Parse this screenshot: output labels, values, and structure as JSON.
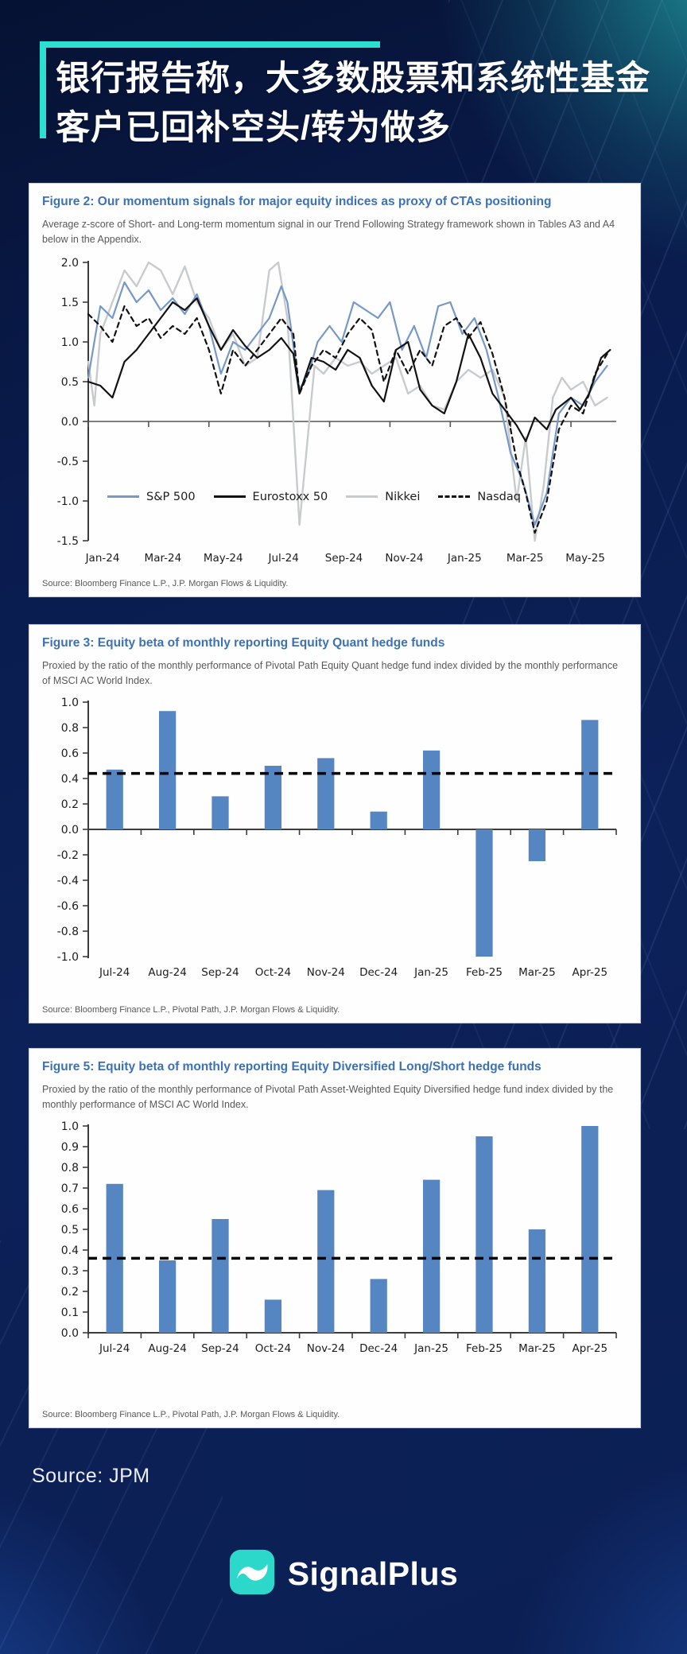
{
  "page": {
    "background": "#0b1f53",
    "accent_teal": "#2be0d0",
    "panel_title_blue": "#3c72b5",
    "bar_blue": "#5586c1"
  },
  "header": {
    "title_line1": "银行报告称，大多数股票和系统性基金",
    "title_line2": "客户已回补空头/转为做多"
  },
  "figures": [
    {
      "title": "Figure 2: Our momentum signals for major equity indices as proxy of CTAs positioning",
      "subtitle": "Average z-score of Short- and Long-term momentum signal in our Trend Following Strategy framework shown in Tables A3 and A4 below in the Appendix.",
      "source": "Source: Bloomberg Finance L.P., J.P. Morgan Flows & Liquidity."
    },
    {
      "title": "Figure 3: Equity beta of monthly reporting Equity Quant hedge funds",
      "subtitle": "Proxied by the ratio of the monthly performance of Pivotal Path Equity Quant hedge fund index divided by the monthly performance of MSCI AC World Index.",
      "source": "Source: Bloomberg Finance L.P., Pivotal Path, J.P. Morgan Flows & Liquidity."
    },
    {
      "title": "Figure 5: Equity beta of monthly reporting Equity Diversified Long/Short hedge funds",
      "subtitle": "Proxied by the ratio of the monthly performance of Pivotal Path Asset-Weighted Equity Diversified hedge fund index divided by the monthly performance of MSCI AC World Index.",
      "source": "Source: Bloomberg Finance L.P., Pivotal Path, J.P. Morgan Flows & Liquidity."
    }
  ],
  "chart_data": [
    {
      "type": "line",
      "title": "Figure 2: Our momentum signals for major equity indices as proxy of CTAs positioning",
      "ylabel": "Average z-score",
      "ylim": [
        -1.5,
        2.0
      ],
      "ytick_step": 0.5,
      "x_range": [
        0,
        17.5
      ],
      "x_tick_pos": [
        0,
        2,
        4,
        6,
        8,
        10,
        12,
        14,
        16
      ],
      "x_tick_labels": [
        "Jan-24",
        "Mar-24",
        "May-24",
        "Jul-24",
        "Sep-24",
        "Nov-24",
        "Jan-25",
        "Mar-25",
        "May-25"
      ],
      "grid": false,
      "legend_position": "bottom-inside",
      "draw_order": [
        2,
        0,
        3,
        1
      ],
      "series": [
        {
          "name": "S&P 500",
          "color": "#7598c8",
          "dash": false,
          "width": 2.2,
          "points": [
            [
              0,
              0.55
            ],
            [
              0.4,
              1.45
            ],
            [
              0.8,
              1.3
            ],
            [
              1.2,
              1.75
            ],
            [
              1.6,
              1.5
            ],
            [
              2,
              1.65
            ],
            [
              2.4,
              1.4
            ],
            [
              2.8,
              1.55
            ],
            [
              3.2,
              1.35
            ],
            [
              3.6,
              1.6
            ],
            [
              4,
              1.2
            ],
            [
              4.4,
              0.6
            ],
            [
              4.8,
              1.0
            ],
            [
              5.2,
              0.9
            ],
            [
              5.6,
              1.1
            ],
            [
              6,
              1.3
            ],
            [
              6.4,
              1.7
            ],
            [
              6.6,
              1.5
            ],
            [
              7,
              0.4
            ],
            [
              7.3,
              0.6
            ],
            [
              7.6,
              1.0
            ],
            [
              8,
              1.2
            ],
            [
              8.4,
              1.0
            ],
            [
              8.8,
              1.5
            ],
            [
              9.2,
              1.4
            ],
            [
              9.6,
              1.3
            ],
            [
              10,
              1.5
            ],
            [
              10.4,
              0.9
            ],
            [
              10.8,
              1.2
            ],
            [
              11.2,
              0.8
            ],
            [
              11.6,
              1.45
            ],
            [
              12,
              1.5
            ],
            [
              12.4,
              1.1
            ],
            [
              12.8,
              1.3
            ],
            [
              13.2,
              0.9
            ],
            [
              13.6,
              0.3
            ],
            [
              14,
              -0.4
            ],
            [
              14.4,
              -0.75
            ],
            [
              14.8,
              -1.3
            ],
            [
              15.2,
              -0.9
            ],
            [
              15.6,
              0.1
            ],
            [
              16,
              0.3
            ],
            [
              16.4,
              0.2
            ],
            [
              16.8,
              0.5
            ],
            [
              17.2,
              0.7
            ]
          ]
        },
        {
          "name": "Eurostoxx 50",
          "color": "#111111",
          "dash": false,
          "width": 2.2,
          "points": [
            [
              0,
              0.5
            ],
            [
              0.4,
              0.45
            ],
            [
              0.8,
              0.3
            ],
            [
              1.2,
              0.75
            ],
            [
              1.6,
              0.9
            ],
            [
              2,
              1.1
            ],
            [
              2.4,
              1.3
            ],
            [
              2.8,
              1.5
            ],
            [
              3.2,
              1.4
            ],
            [
              3.6,
              1.55
            ],
            [
              4,
              1.2
            ],
            [
              4.4,
              0.9
            ],
            [
              4.8,
              1.15
            ],
            [
              5.2,
              0.95
            ],
            [
              5.6,
              0.8
            ],
            [
              6,
              0.9
            ],
            [
              6.4,
              1.05
            ],
            [
              6.8,
              0.85
            ],
            [
              7,
              0.35
            ],
            [
              7.4,
              0.8
            ],
            [
              7.8,
              0.75
            ],
            [
              8.2,
              0.65
            ],
            [
              8.6,
              0.9
            ],
            [
              9,
              0.8
            ],
            [
              9.4,
              0.45
            ],
            [
              9.8,
              0.25
            ],
            [
              10.2,
              0.9
            ],
            [
              10.6,
              1.0
            ],
            [
              11,
              0.4
            ],
            [
              11.4,
              0.2
            ],
            [
              11.8,
              0.1
            ],
            [
              12.2,
              0.5
            ],
            [
              12.6,
              1.1
            ],
            [
              13,
              0.8
            ],
            [
              13.4,
              0.35
            ],
            [
              13.8,
              0.15
            ],
            [
              14.2,
              -0.05
            ],
            [
              14.5,
              -0.25
            ],
            [
              14.8,
              0.05
            ],
            [
              15.2,
              -0.1
            ],
            [
              15.5,
              0.15
            ],
            [
              16,
              0.3
            ],
            [
              16.3,
              0.15
            ],
            [
              16.6,
              0.35
            ],
            [
              17,
              0.8
            ],
            [
              17.3,
              0.9
            ]
          ]
        },
        {
          "name": "Nikkei",
          "color": "#c8cbce",
          "dash": false,
          "width": 2.4,
          "points": [
            [
              0,
              0.75
            ],
            [
              0.2,
              0.2
            ],
            [
              0.4,
              1.1
            ],
            [
              0.8,
              1.5
            ],
            [
              1.2,
              1.9
            ],
            [
              1.6,
              1.7
            ],
            [
              2,
              2.0
            ],
            [
              2.4,
              1.9
            ],
            [
              2.8,
              1.6
            ],
            [
              3.2,
              1.95
            ],
            [
              3.6,
              1.5
            ],
            [
              4,
              1.3
            ],
            [
              4.4,
              0.9
            ],
            [
              4.8,
              1.1
            ],
            [
              5.2,
              0.7
            ],
            [
              5.6,
              0.8
            ],
            [
              6,
              1.9
            ],
            [
              6.3,
              2.0
            ],
            [
              6.6,
              1.3
            ],
            [
              7,
              -1.3
            ],
            [
              7.2,
              -0.5
            ],
            [
              7.5,
              0.7
            ],
            [
              7.8,
              0.6
            ],
            [
              8.2,
              0.8
            ],
            [
              8.6,
              0.7
            ],
            [
              9,
              0.75
            ],
            [
              9.4,
              0.6
            ],
            [
              9.8,
              0.7
            ],
            [
              10.2,
              0.8
            ],
            [
              10.6,
              0.35
            ],
            [
              11,
              0.45
            ],
            [
              11.4,
              0.2
            ],
            [
              11.8,
              0.15
            ],
            [
              12.2,
              0.5
            ],
            [
              12.6,
              0.65
            ],
            [
              13,
              0.55
            ],
            [
              13.4,
              0.65
            ],
            [
              13.8,
              0.3
            ],
            [
              14.2,
              -1.0
            ],
            [
              14.5,
              -0.2
            ],
            [
              14.8,
              -1.5
            ],
            [
              15.1,
              -0.8
            ],
            [
              15.4,
              0.3
            ],
            [
              15.7,
              0.55
            ],
            [
              16,
              0.4
            ],
            [
              16.4,
              0.5
            ],
            [
              16.8,
              0.2
            ],
            [
              17.2,
              0.3
            ]
          ]
        },
        {
          "name": "Nasdaq",
          "color": "#111111",
          "dash": true,
          "width": 2.2,
          "points": [
            [
              0,
              1.35
            ],
            [
              0.4,
              1.2
            ],
            [
              0.8,
              1.0
            ],
            [
              1.2,
              1.45
            ],
            [
              1.6,
              1.2
            ],
            [
              2,
              1.3
            ],
            [
              2.4,
              1.05
            ],
            [
              2.8,
              1.2
            ],
            [
              3.2,
              1.1
            ],
            [
              3.6,
              1.3
            ],
            [
              4,
              0.9
            ],
            [
              4.4,
              0.35
            ],
            [
              4.8,
              0.9
            ],
            [
              5.2,
              0.7
            ],
            [
              5.6,
              0.9
            ],
            [
              6,
              1.1
            ],
            [
              6.4,
              1.3
            ],
            [
              6.8,
              1.1
            ],
            [
              7,
              0.35
            ],
            [
              7.4,
              0.7
            ],
            [
              7.8,
              0.9
            ],
            [
              8.2,
              0.8
            ],
            [
              8.6,
              1.1
            ],
            [
              9,
              1.3
            ],
            [
              9.4,
              1.15
            ],
            [
              9.8,
              0.5
            ],
            [
              10.2,
              0.9
            ],
            [
              10.6,
              0.6
            ],
            [
              11,
              0.9
            ],
            [
              11.4,
              0.7
            ],
            [
              11.8,
              1.2
            ],
            [
              12.2,
              1.3
            ],
            [
              12.6,
              1.05
            ],
            [
              13,
              1.25
            ],
            [
              13.4,
              0.85
            ],
            [
              13.8,
              0.3
            ],
            [
              14.2,
              -0.5
            ],
            [
              14.5,
              -0.9
            ],
            [
              14.8,
              -1.4
            ],
            [
              15.2,
              -1.0
            ],
            [
              15.6,
              -0.1
            ],
            [
              16,
              0.2
            ],
            [
              16.4,
              0.1
            ],
            [
              16.8,
              0.6
            ],
            [
              17.2,
              0.85
            ]
          ]
        }
      ]
    },
    {
      "type": "bar",
      "title": "Figure 3: Equity beta of monthly reporting Equity Quant hedge funds",
      "categories": [
        "Jul-24",
        "Aug-24",
        "Sep-24",
        "Oct-24",
        "Nov-24",
        "Dec-24",
        "Jan-25",
        "Feb-25",
        "Mar-25",
        "Apr-25"
      ],
      "values": [
        0.47,
        0.93,
        0.26,
        0.5,
        0.56,
        0.14,
        0.62,
        -1.0,
        -0.25,
        0.86
      ],
      "ref_line": 0.44,
      "ylim": [
        -1.0,
        1.0
      ],
      "ytick_step": 0.2,
      "bar_color": "#5586c1",
      "grid": false
    },
    {
      "type": "bar",
      "title": "Figure 5: Equity beta of monthly reporting Equity Diversified Long/Short hedge funds",
      "categories": [
        "Jul-24",
        "Aug-24",
        "Sep-24",
        "Oct-24",
        "Nov-24",
        "Dec-24",
        "Jan-25",
        "Feb-25",
        "Mar-25",
        "Apr-25"
      ],
      "values": [
        0.72,
        0.35,
        0.55,
        0.16,
        0.69,
        0.26,
        0.74,
        0.95,
        0.5,
        1.0
      ],
      "ref_line": 0.36,
      "ylim": [
        0.0,
        1.0
      ],
      "ytick_step": 0.1,
      "bar_color": "#5586c1",
      "grid": false
    }
  ],
  "footer": {
    "source_label": "Source: JPM",
    "brand": "SignalPlus"
  }
}
